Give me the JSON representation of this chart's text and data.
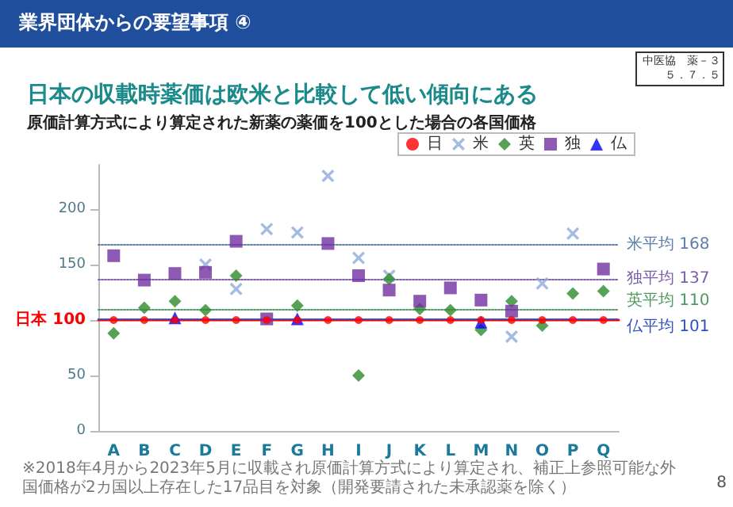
{
  "chart_data": {
    "type": "scatter",
    "title": "日本の収載時薬価は欧米と比較して低い傾向にある",
    "subtitle": "原価計算方式により算定された新薬の薬価を100とした場合の各国価格",
    "annotations": [
      "業界団体からの要望事項 ④",
      "中医協　薬－３",
      "５．７．５",
      "※2018年4月から2023年5月に収載され原価計算方式により算定され、補正上参照可能な外国価格が2カ国以上存在した17品目を対象（開発要請された未承認薬を除く）",
      "8"
    ],
    "categories": [
      "A",
      "B",
      "C",
      "D",
      "E",
      "F",
      "G",
      "H",
      "I",
      "J",
      "K",
      "L",
      "M",
      "N",
      "O",
      "P",
      "Q"
    ],
    "series": [
      {
        "name": "日",
        "color": "#ff0000",
        "marker": "circle",
        "values": [
          100,
          100,
          100,
          100,
          100,
          100,
          100,
          100,
          100,
          100,
          100,
          100,
          100,
          100,
          100,
          100,
          100
        ]
      },
      {
        "name": "米",
        "color": "#8eaadb",
        "marker": "cross",
        "values": [
          null,
          null,
          null,
          150,
          128,
          182,
          179,
          230,
          156,
          140,
          null,
          null,
          null,
          85,
          133,
          178,
          null
        ]
      },
      {
        "name": "英",
        "color": "#2e8b2e",
        "marker": "diamond",
        "values": [
          88,
          111,
          117,
          109,
          140,
          null,
          113,
          null,
          50,
          137,
          110,
          109,
          91,
          117,
          95,
          124,
          126
        ]
      },
      {
        "name": "独",
        "color": "#7030a0",
        "marker": "square",
        "values": [
          158,
          136,
          142,
          143,
          171,
          101,
          null,
          169,
          140,
          127,
          117,
          129,
          118,
          108,
          null,
          null,
          146
        ]
      },
      {
        "name": "仏",
        "color": "#0000ff",
        "marker": "triangle",
        "values": [
          null,
          null,
          102,
          null,
          null,
          null,
          101,
          null,
          null,
          null,
          null,
          null,
          98,
          null,
          null,
          null,
          null
        ]
      }
    ],
    "ref_lines": [
      {
        "axis": "y",
        "value": 100,
        "label": "日本 100",
        "color": "#ff0000",
        "line_style": "solid"
      },
      {
        "axis": "y",
        "value": 168,
        "label": "米平均 168",
        "color": "#5b7fa6",
        "line_style": "dotted"
      },
      {
        "axis": "y",
        "value": 137,
        "label": "独平均 137",
        "color": "#7b5ea7",
        "line_style": "dotted"
      },
      {
        "axis": "y",
        "value": 110,
        "label": "英平均 110",
        "color": "#4f9a5f",
        "line_style": "dotted"
      },
      {
        "axis": "y",
        "value": 101,
        "label": "仏平均 101",
        "color": "#3050c0",
        "line_style": "dotted"
      }
    ],
    "ylim": [
      0,
      240
    ],
    "yticks": [
      0,
      50,
      {
        "value": 100,
        "label": null
      },
      150,
      200
    ],
    "grid": false,
    "legend": "top right"
  }
}
